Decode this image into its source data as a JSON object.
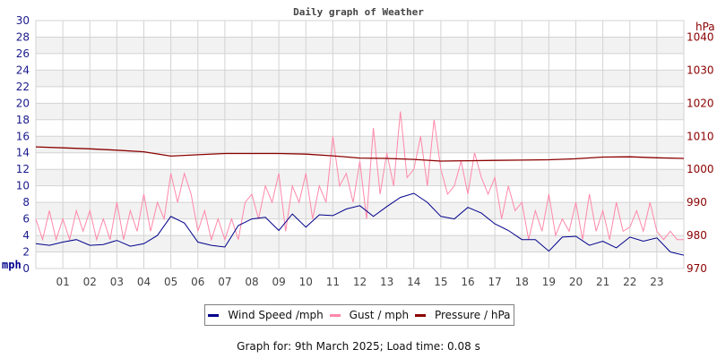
{
  "chart_data": {
    "type": "line",
    "title": "Daily graph of Weather",
    "xlabel": "",
    "x_tick_labels": [
      "01",
      "02",
      "03",
      "04",
      "05",
      "06",
      "07",
      "08",
      "09",
      "10",
      "11",
      "12",
      "13",
      "14",
      "15",
      "16",
      "17",
      "18",
      "19",
      "20",
      "21",
      "22",
      "23"
    ],
    "xlim_hours": [
      0,
      24
    ],
    "y_left": {
      "label": "mph",
      "lim": [
        0,
        30
      ],
      "ticks": [
        "0",
        "2",
        "4",
        "6",
        "8",
        "10",
        "12",
        "14",
        "16",
        "18",
        "20",
        "22",
        "24",
        "26",
        "28",
        "30"
      ]
    },
    "y_right": {
      "label": "hPa",
      "lim": [
        970,
        1045
      ],
      "ticks": [
        "970",
        "980",
        "990",
        "1000",
        "1010",
        "1020",
        "1030",
        "1040"
      ]
    },
    "grid": true,
    "legend_placement": "bottom",
    "series": [
      {
        "name": "Wind Speed /mph",
        "axis": "left",
        "color": "#00008b",
        "step_hours": 0.5,
        "values": [
          3.0,
          2.8,
          3.2,
          3.5,
          2.8,
          2.9,
          3.4,
          2.7,
          3.0,
          4.0,
          6.3,
          5.5,
          3.2,
          2.8,
          2.6,
          5.2,
          6.0,
          6.2,
          4.6,
          6.6,
          5.0,
          6.5,
          6.4,
          7.2,
          7.6,
          6.3,
          7.5,
          8.6,
          9.1,
          8.0,
          6.3,
          6.0,
          7.4,
          6.7,
          5.4,
          4.6,
          3.5,
          3.5,
          2.1,
          3.8,
          3.9,
          2.8,
          3.3,
          2.5,
          3.8,
          3.3,
          3.7,
          2.0,
          1.6
        ]
      },
      {
        "name": "Gust / mph",
        "axis": "left",
        "color": "#ff88aa",
        "step_hours": 0.25,
        "values": [
          6,
          3.5,
          7,
          3.5,
          6,
          3.5,
          7,
          4.5,
          7,
          3.5,
          6,
          3.5,
          8,
          3.5,
          7,
          4.5,
          9,
          4.5,
          8,
          6,
          11.5,
          8,
          11.5,
          9,
          4.5,
          7,
          3.5,
          6,
          3.5,
          6,
          3.5,
          8,
          9,
          6,
          10,
          8,
          11.5,
          4.5,
          10,
          8,
          11.5,
          6,
          10,
          8,
          16,
          10,
          11.5,
          8,
          13,
          6,
          17,
          9,
          14,
          10,
          19,
          11,
          12,
          16,
          10,
          18,
          12,
          9,
          10,
          13,
          9,
          14,
          11,
          9,
          11,
          6,
          10,
          7,
          8,
          3.5,
          7,
          4.5,
          9,
          4,
          6,
          4.5,
          8,
          3.5,
          9,
          4.5,
          7,
          3.5,
          8,
          4.5,
          5,
          7,
          4.5,
          8,
          4.5,
          3.5,
          4.5,
          3.5,
          3.5
        ]
      },
      {
        "name": "Pressure / hPa",
        "axis": "right",
        "color": "#8b0000",
        "step_hours": 1,
        "values": [
          1006.8,
          1006.5,
          1006.2,
          1005.8,
          1005.3,
          1004.0,
          1004.4,
          1004.8,
          1004.8,
          1004.8,
          1004.6,
          1004.1,
          1003.4,
          1003.3,
          1003.0,
          1002.5,
          1002.6,
          1002.7,
          1002.8,
          1002.9,
          1003.2,
          1003.7,
          1003.8,
          1003.5,
          1003.3
        ]
      }
    ]
  },
  "legend": {
    "items": [
      "Wind Speed /mph",
      "Gust / mph",
      "Pressure / hPa"
    ]
  },
  "footer": "Graph for: 9th March 2025; Load time: 0.08 s"
}
